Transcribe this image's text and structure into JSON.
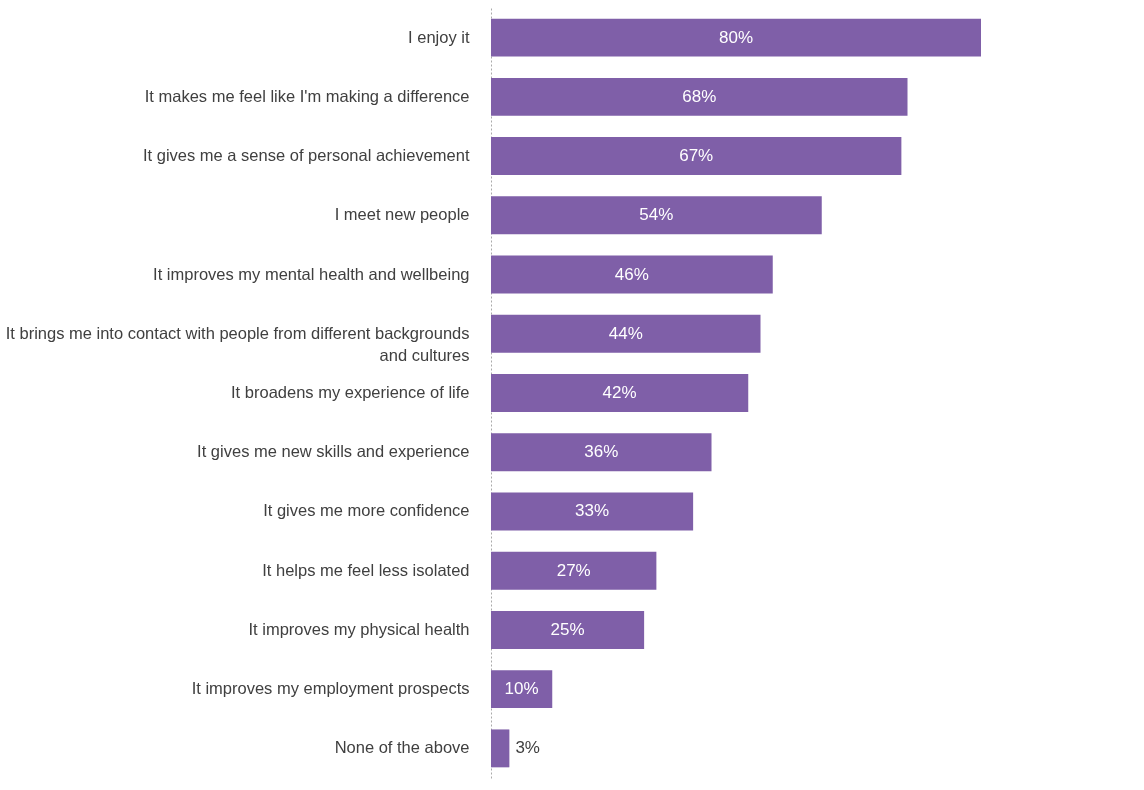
{
  "chart_data": {
    "type": "bar",
    "orientation": "horizontal",
    "categories": [
      "I enjoy it",
      "It makes me feel like I'm making a difference",
      "It gives me a sense of personal achievement",
      "I meet new people",
      "It improves my mental health and wellbeing",
      "It brings me into contact with people from different backgrounds and cultures",
      "It broadens my experience of life",
      "It gives me new skills and experience",
      "It gives me more confidence",
      "It helps me feel less isolated",
      "It improves my physical health",
      "It improves my employment prospects",
      "None of the above"
    ],
    "values": [
      80,
      68,
      67,
      54,
      46,
      44,
      42,
      36,
      33,
      27,
      25,
      10,
      3
    ],
    "value_labels": [
      "80%",
      "68%",
      "67%",
      "54%",
      "46%",
      "44%",
      "42%",
      "36%",
      "33%",
      "27%",
      "25%",
      "10%",
      "3%"
    ],
    "color": "#7f5fa8",
    "grid": false
  }
}
